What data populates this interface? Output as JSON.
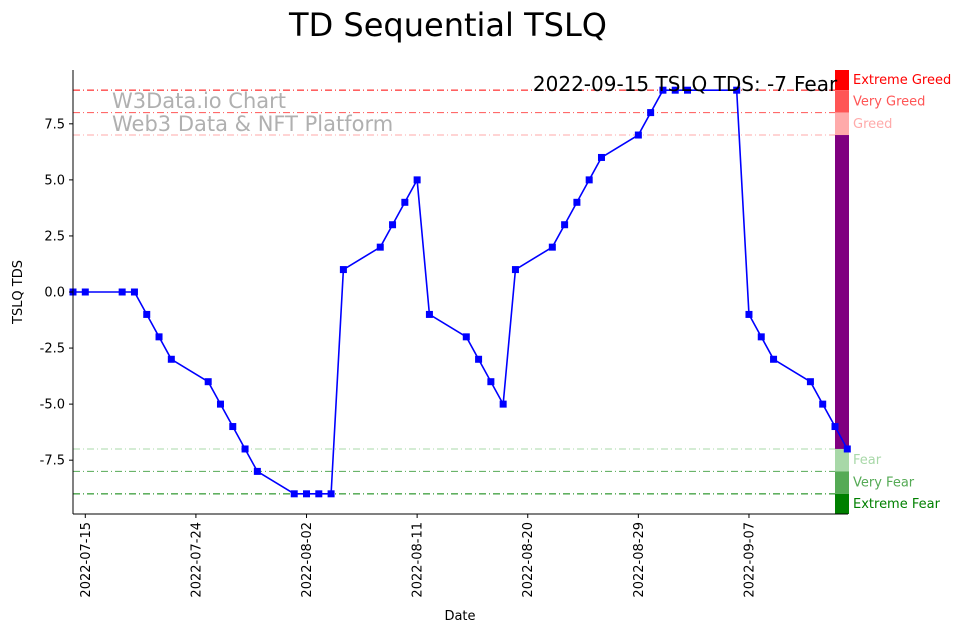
{
  "chart_data": {
    "type": "line",
    "title": "TD Sequential TSLQ",
    "xlabel": "Date",
    "ylabel": "TSLQ TDS",
    "ylim": [
      -9.9,
      9.9
    ],
    "x_range": [
      "2022-07-14",
      "2022-09-14"
    ],
    "grid": false,
    "x_tick_labels": [
      "2022-07-15",
      "2022-07-24",
      "2022-08-02",
      "2022-08-11",
      "2022-08-20",
      "2022-08-29",
      "2022-09-07"
    ],
    "y_tick_labels": [
      "-7.5",
      "-5.0",
      "-2.5",
      "0.0",
      "2.5",
      "5.0",
      "7.5"
    ],
    "y_ticks": [
      -7.5,
      -5.0,
      -2.5,
      0.0,
      2.5,
      5.0,
      7.5
    ],
    "series": [
      {
        "color": "#0000ff",
        "marker": "square",
        "x": [
          "2022-07-14",
          "2022-07-15",
          "2022-07-18",
          "2022-07-19",
          "2022-07-20",
          "2022-07-21",
          "2022-07-22",
          "2022-07-25",
          "2022-07-26",
          "2022-07-27",
          "2022-07-28",
          "2022-07-29",
          "2022-08-01",
          "2022-08-02",
          "2022-08-03",
          "2022-08-04",
          "2022-08-05",
          "2022-08-08",
          "2022-08-09",
          "2022-08-10",
          "2022-08-11",
          "2022-08-12",
          "2022-08-15",
          "2022-08-16",
          "2022-08-17",
          "2022-08-18",
          "2022-08-19",
          "2022-08-22",
          "2022-08-23",
          "2022-08-24",
          "2022-08-25",
          "2022-08-26",
          "2022-08-29",
          "2022-08-30",
          "2022-08-31",
          "2022-09-01",
          "2022-09-02",
          "2022-09-06",
          "2022-09-07",
          "2022-09-08",
          "2022-09-09",
          "2022-09-12",
          "2022-09-13",
          "2022-09-14",
          "2022-09-15"
        ],
        "y": [
          0,
          0,
          0,
          0,
          -1,
          -2,
          -3,
          -4,
          -5,
          -6,
          -7,
          -8,
          -9,
          -9,
          -9,
          -9,
          1,
          2,
          3,
          4,
          5,
          -1,
          -2,
          -3,
          -4,
          -5,
          1,
          2,
          3,
          4,
          5,
          6,
          7,
          8,
          9,
          9,
          9,
          9,
          -1,
          -2,
          -3,
          -4,
          -5,
          -6,
          -7
        ]
      }
    ],
    "threshold_lines": [
      {
        "value": 9,
        "color": "#ff0000"
      },
      {
        "value": 8,
        "color": "#ff5555"
      },
      {
        "value": 7,
        "color": "#ffaaaa"
      },
      {
        "value": -7,
        "color": "#a8d8a8"
      },
      {
        "value": -8,
        "color": "#55aa55"
      },
      {
        "value": -9,
        "color": "#008000"
      }
    ],
    "bands": [
      {
        "label": "Extreme Greed",
        "from": 9,
        "to": 9.9,
        "color": "#ff0000",
        "text_color": "#ff0000"
      },
      {
        "label": "Very Greed",
        "from": 8,
        "to": 9,
        "color": "#ff5555",
        "text_color": "#ff5555"
      },
      {
        "label": "Greed",
        "from": 7,
        "to": 8,
        "color": "#ffaaaa",
        "text_color": "#ffaaaa"
      },
      {
        "label": "",
        "from": -7,
        "to": 7,
        "color": "#800080",
        "text_color": "#800080"
      },
      {
        "label": "Fear",
        "from": -8,
        "to": -7,
        "color": "#a8d8a8",
        "text_color": "#a8d8a8"
      },
      {
        "label": "Very Fear",
        "from": -9,
        "to": -8,
        "color": "#55aa55",
        "text_color": "#55aa55"
      },
      {
        "label": "Extreme Fear",
        "from": -9.9,
        "to": -9,
        "color": "#008000",
        "text_color": "#008000"
      }
    ],
    "watermark": [
      "W3Data.io Chart",
      "Web3 Data & NFT Platform"
    ],
    "annotation": {
      "text": "2022-09-15 TSLQ TDS: -7",
      "status": "Fear",
      "status_color": "#a8d8a8"
    }
  }
}
